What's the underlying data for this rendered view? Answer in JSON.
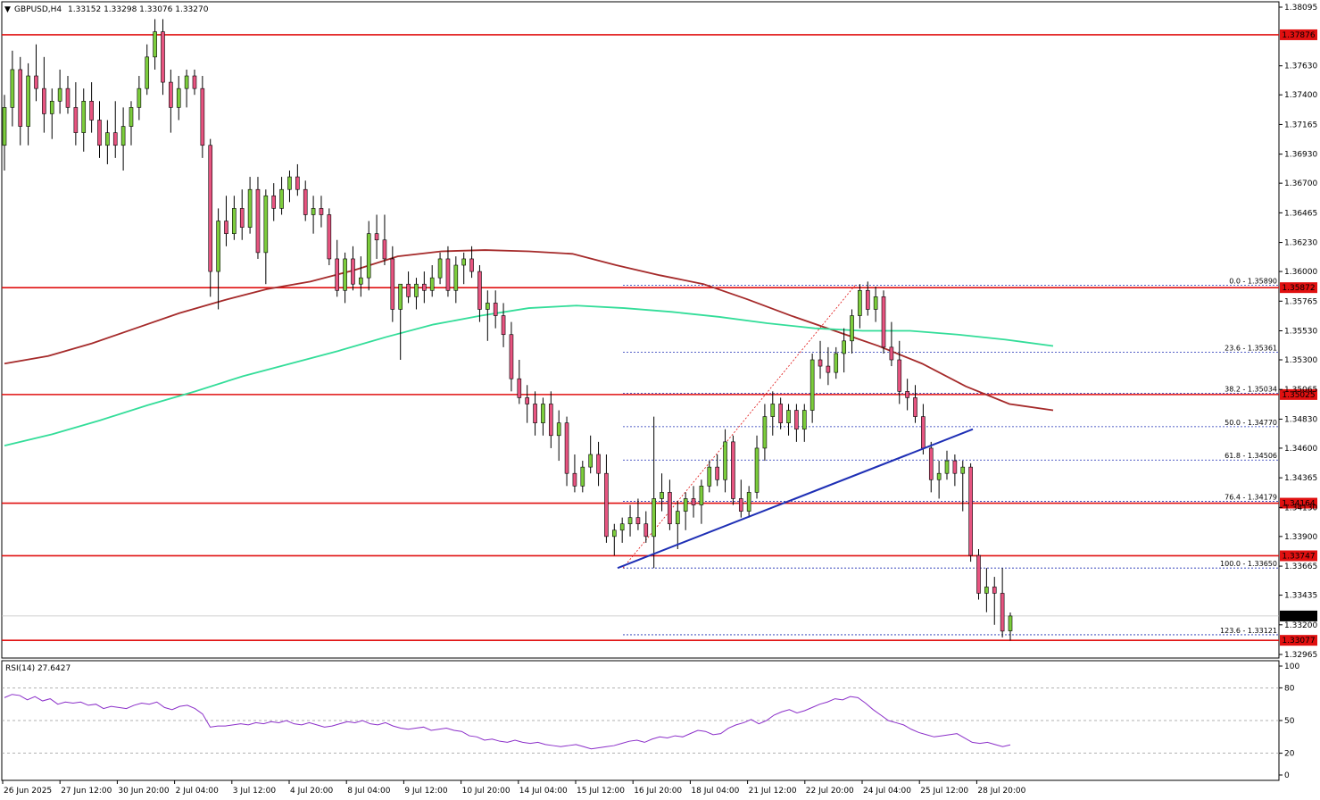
{
  "header": {
    "symbol_title": "GBPUSD,H4",
    "ohlc_text": "1.33152 1.33298 1.33076 1.33270",
    "title_marker": "▼"
  },
  "rsi_panel": {
    "title": "RSI(14) 27.6427",
    "levels": [
      100,
      80,
      50,
      20,
      0
    ],
    "dashed_levels": [
      80,
      50,
      20
    ]
  },
  "price_axis": {
    "ticks": [
      "1.38095",
      "1.37630",
      "1.37400",
      "1.37165",
      "1.36930",
      "1.36700",
      "1.36465",
      "1.36230",
      "1.36000",
      "1.35765",
      "1.35530",
      "1.35300",
      "1.35065",
      "1.34830",
      "1.34600",
      "1.34365",
      "1.34130",
      "1.33900",
      "1.33665",
      "1.33435",
      "1.33200",
      "1.32965"
    ],
    "current_price": "1.33270"
  },
  "time_axis": {
    "labels": [
      "26 Jun 2025",
      "27 Jun 12:00",
      "30 Jun 20:00",
      "2 Jul 04:00",
      "3 Jul 12:00",
      "4 Jul 20:00",
      "8 Jul 04:00",
      "9 Jul 12:00",
      "10 Jul 20:00",
      "14 Jul 04:00",
      "15 Jul 12:00",
      "16 Jul 20:00",
      "18 Jul 04:00",
      "21 Jul 12:00",
      "22 Jul 20:00",
      "24 Jul 04:00",
      "25 Jul 12:00",
      "28 Jul 20:00"
    ]
  },
  "levels": {
    "horizontal": [
      "1.37876",
      "1.35872",
      "1.35025",
      "1.34164",
      "1.33747",
      "1.33077"
    ],
    "colors": {
      "level_line": "#e01010",
      "bull": "#7ccd3c",
      "bear": "#e75480",
      "ma_slow": "#a52a2a",
      "ma_fast": "#33dd99",
      "trend": "#1e2fb5",
      "fib": "#1e2fb5",
      "current": "#000000"
    }
  },
  "fibonacci": [
    {
      "label": "0.0 - 1.35890"
    },
    {
      "label": "23.6 - 1.35361"
    },
    {
      "label": "38.2 - 1.35034"
    },
    {
      "label": "50.0 - 1.34770"
    },
    {
      "label": "61.8 - 1.34506"
    },
    {
      "label": "76.4 - 1.34179"
    },
    {
      "label": "100.0 - 1.33650"
    },
    {
      "label": "123.6 - 1.33121"
    }
  ],
  "chart_data": {
    "type": "candlestick",
    "symbol": "GBPUSD",
    "timeframe": "H4",
    "ylim": [
      1.32965,
      1.38095
    ],
    "rsi_ylim": [
      0,
      100
    ],
    "last_ohlc": {
      "open": 1.33152,
      "high": 1.33298,
      "low": 1.33076,
      "close": 1.3327
    },
    "rsi_last": 27.6427,
    "fib_levels": [
      {
        "ratio": 0.0,
        "price": 1.3589
      },
      {
        "ratio": 23.6,
        "price": 1.35361
      },
      {
        "ratio": 38.2,
        "price": 1.35034
      },
      {
        "ratio": 50.0,
        "price": 1.3477
      },
      {
        "ratio": 61.8,
        "price": 1.34506
      },
      {
        "ratio": 76.4,
        "price": 1.34179
      },
      {
        "ratio": 100.0,
        "price": 1.3365
      },
      {
        "ratio": 123.6,
        "price": 1.33121
      }
    ],
    "horizontal_levels": [
      1.37876,
      1.35872,
      1.35025,
      1.34164,
      1.33747,
      1.33077
    ],
    "trendline": [
      {
        "x": "15 Jul 12:00",
        "y": 1.3365
      },
      {
        "x": "25 Jul 12:00",
        "y": 1.3475
      }
    ],
    "candles": [
      [
        1.37,
        1.374,
        1.368,
        1.373
      ],
      [
        1.373,
        1.3775,
        1.3715,
        1.376
      ],
      [
        1.376,
        1.377,
        1.37,
        1.3715
      ],
      [
        1.3715,
        1.3765,
        1.37,
        1.3755
      ],
      [
        1.3755,
        1.378,
        1.3735,
        1.3745
      ],
      [
        1.3745,
        1.377,
        1.371,
        1.3725
      ],
      [
        1.3725,
        1.3745,
        1.3705,
        1.3735
      ],
      [
        1.3735,
        1.376,
        1.3725,
        1.3745
      ],
      [
        1.3745,
        1.3755,
        1.3725,
        1.373
      ],
      [
        1.373,
        1.375,
        1.37,
        1.371
      ],
      [
        1.371,
        1.3745,
        1.3695,
        1.3735
      ],
      [
        1.3735,
        1.375,
        1.371,
        1.372
      ],
      [
        1.372,
        1.3735,
        1.369,
        1.37
      ],
      [
        1.37,
        1.372,
        1.3685,
        1.371
      ],
      [
        1.371,
        1.3735,
        1.369,
        1.37
      ],
      [
        1.37,
        1.373,
        1.368,
        1.3715
      ],
      [
        1.3715,
        1.3735,
        1.37,
        1.373
      ],
      [
        1.373,
        1.3755,
        1.372,
        1.3745
      ],
      [
        1.3745,
        1.378,
        1.374,
        1.377
      ],
      [
        1.377,
        1.38,
        1.376,
        1.379
      ],
      [
        1.379,
        1.38,
        1.374,
        1.375
      ],
      [
        1.375,
        1.376,
        1.371,
        1.373
      ],
      [
        1.373,
        1.3755,
        1.372,
        1.3745
      ],
      [
        1.3745,
        1.376,
        1.373,
        1.3755
      ],
      [
        1.3755,
        1.376,
        1.374,
        1.3745
      ],
      [
        1.3745,
        1.3755,
        1.369,
        1.37
      ],
      [
        1.37,
        1.3705,
        1.358,
        1.36
      ],
      [
        1.36,
        1.365,
        1.357,
        1.364
      ],
      [
        1.364,
        1.366,
        1.362,
        1.363
      ],
      [
        1.363,
        1.366,
        1.3625,
        1.365
      ],
      [
        1.365,
        1.3665,
        1.3625,
        1.3635
      ],
      [
        1.3635,
        1.3675,
        1.363,
        1.3665
      ],
      [
        1.3665,
        1.3675,
        1.361,
        1.3615
      ],
      [
        1.3615,
        1.3665,
        1.359,
        1.366
      ],
      [
        1.366,
        1.367,
        1.364,
        1.365
      ],
      [
        1.365,
        1.3675,
        1.3645,
        1.3665
      ],
      [
        1.3665,
        1.368,
        1.3655,
        1.3675
      ],
      [
        1.3675,
        1.3685,
        1.366,
        1.3665
      ],
      [
        1.3665,
        1.3672,
        1.364,
        1.3645
      ],
      [
        1.3645,
        1.366,
        1.363,
        1.365
      ],
      [
        1.365,
        1.366,
        1.3635,
        1.3645
      ],
      [
        1.3645,
        1.365,
        1.3605,
        1.361
      ],
      [
        1.361,
        1.3625,
        1.358,
        1.3585
      ],
      [
        1.3585,
        1.3615,
        1.3575,
        1.361
      ],
      [
        1.361,
        1.362,
        1.3585,
        1.359
      ],
      [
        1.359,
        1.3612,
        1.358,
        1.3595
      ],
      [
        1.3595,
        1.364,
        1.3585,
        1.363
      ],
      [
        1.363,
        1.3645,
        1.361,
        1.3625
      ],
      [
        1.3625,
        1.3645,
        1.3605,
        1.361
      ],
      [
        1.361,
        1.362,
        1.356,
        1.357
      ],
      [
        1.357,
        1.3585,
        1.353,
        1.359
      ],
      [
        1.359,
        1.36,
        1.3575,
        1.358
      ],
      [
        1.358,
        1.3595,
        1.357,
        1.359
      ],
      [
        1.359,
        1.36,
        1.3575,
        1.3585
      ],
      [
        1.3585,
        1.3605,
        1.358,
        1.3595
      ],
      [
        1.3595,
        1.3615,
        1.359,
        1.361
      ],
      [
        1.361,
        1.362,
        1.358,
        1.3585
      ],
      [
        1.3585,
        1.3612,
        1.3575,
        1.3605
      ],
      [
        1.3605,
        1.3615,
        1.359,
        1.361
      ],
      [
        1.361,
        1.362,
        1.3595,
        1.36
      ],
      [
        1.36,
        1.3605,
        1.356,
        1.357
      ],
      [
        1.357,
        1.3585,
        1.3545,
        1.3575
      ],
      [
        1.3575,
        1.3585,
        1.3555,
        1.3565
      ],
      [
        1.3565,
        1.3575,
        1.354,
        1.355
      ],
      [
        1.355,
        1.356,
        1.3505,
        1.3515
      ],
      [
        1.3515,
        1.353,
        1.3495,
        1.35
      ],
      [
        1.35,
        1.351,
        1.348,
        1.3495
      ],
      [
        1.3495,
        1.3505,
        1.347,
        1.348
      ],
      [
        1.348,
        1.35,
        1.347,
        1.3495
      ],
      [
        1.3495,
        1.3505,
        1.346,
        1.347
      ],
      [
        1.347,
        1.349,
        1.345,
        1.348
      ],
      [
        1.348,
        1.3485,
        1.343,
        1.344
      ],
      [
        1.344,
        1.3455,
        1.3425,
        1.343
      ],
      [
        1.343,
        1.345,
        1.3425,
        1.3445
      ],
      [
        1.3445,
        1.347,
        1.344,
        1.3455
      ],
      [
        1.3455,
        1.3465,
        1.343,
        1.344
      ],
      [
        1.344,
        1.3455,
        1.3385,
        1.339
      ],
      [
        1.339,
        1.34,
        1.3375,
        1.3395
      ],
      [
        1.3395,
        1.3405,
        1.3385,
        1.34
      ],
      [
        1.34,
        1.3415,
        1.339,
        1.3405
      ],
      [
        1.3405,
        1.342,
        1.3395,
        1.34
      ],
      [
        1.34,
        1.341,
        1.3385,
        1.339
      ],
      [
        1.339,
        1.3485,
        1.3365,
        1.342
      ],
      [
        1.342,
        1.344,
        1.341,
        1.3425
      ],
      [
        1.3425,
        1.3435,
        1.3395,
        1.34
      ],
      [
        1.34,
        1.3418,
        1.338,
        1.341
      ],
      [
        1.341,
        1.3425,
        1.3395,
        1.342
      ],
      [
        1.342,
        1.343,
        1.3405,
        1.3415
      ],
      [
        1.3415,
        1.3435,
        1.34,
        1.343
      ],
      [
        1.343,
        1.345,
        1.3425,
        1.3445
      ],
      [
        1.3445,
        1.3455,
        1.343,
        1.3435
      ],
      [
        1.3435,
        1.3475,
        1.3425,
        1.3465
      ],
      [
        1.3465,
        1.347,
        1.3415,
        1.342
      ],
      [
        1.342,
        1.3435,
        1.3405,
        1.341
      ],
      [
        1.341,
        1.343,
        1.3405,
        1.3425
      ],
      [
        1.3425,
        1.347,
        1.342,
        1.346
      ],
      [
        1.346,
        1.3495,
        1.345,
        1.3485
      ],
      [
        1.3485,
        1.3505,
        1.347,
        1.3495
      ],
      [
        1.3495,
        1.35,
        1.3475,
        1.348
      ],
      [
        1.348,
        1.3495,
        1.347,
        1.349
      ],
      [
        1.349,
        1.3495,
        1.3465,
        1.3475
      ],
      [
        1.3475,
        1.3495,
        1.3465,
        1.349
      ],
      [
        1.349,
        1.3535,
        1.348,
        1.353
      ],
      [
        1.353,
        1.3545,
        1.3515,
        1.3525
      ],
      [
        1.3525,
        1.354,
        1.351,
        1.352
      ],
      [
        1.352,
        1.354,
        1.3515,
        1.3535
      ],
      [
        1.3535,
        1.3555,
        1.352,
        1.3545
      ],
      [
        1.3545,
        1.357,
        1.3535,
        1.3565
      ],
      [
        1.3565,
        1.359,
        1.3555,
        1.3585
      ],
      [
        1.3585,
        1.3592,
        1.3565,
        1.357
      ],
      [
        1.357,
        1.3588,
        1.356,
        1.358
      ],
      [
        1.358,
        1.3585,
        1.3535,
        1.354
      ],
      [
        1.354,
        1.356,
        1.3525,
        1.353
      ],
      [
        1.353,
        1.3545,
        1.3495,
        1.3505
      ],
      [
        1.3505,
        1.3515,
        1.349,
        1.35
      ],
      [
        1.35,
        1.351,
        1.348,
        1.3485
      ],
      [
        1.3485,
        1.3495,
        1.3455,
        1.346
      ],
      [
        1.346,
        1.3465,
        1.3425,
        1.3435
      ],
      [
        1.3435,
        1.345,
        1.342,
        1.344
      ],
      [
        1.344,
        1.3458,
        1.3435,
        1.345
      ],
      [
        1.345,
        1.3455,
        1.343,
        1.344
      ],
      [
        1.344,
        1.345,
        1.341,
        1.3445
      ],
      [
        1.3445,
        1.3448,
        1.337,
        1.3375
      ],
      [
        1.3375,
        1.338,
        1.334,
        1.3345
      ],
      [
        1.3345,
        1.3365,
        1.333,
        1.335
      ],
      [
        1.335,
        1.3358,
        1.332,
        1.3345
      ],
      [
        1.3345,
        1.3365,
        1.331,
        1.3315
      ],
      [
        1.33152,
        1.33298,
        1.33076,
        1.3327
      ]
    ],
    "ma_slow": [
      1.3527,
      1.3533,
      1.3543,
      1.3555,
      1.3567,
      1.3577,
      1.3586,
      1.3592,
      1.3601,
      1.3612,
      1.3616,
      1.3617,
      1.3616,
      1.3614,
      1.3605,
      1.3597,
      1.359,
      1.3578,
      1.3565,
      1.3553,
      1.3541,
      1.3527,
      1.3509,
      1.3495,
      1.349
    ],
    "ma_fast": [
      1.3462,
      1.3471,
      1.3482,
      1.3494,
      1.3505,
      1.3517,
      1.3527,
      1.3537,
      1.3548,
      1.3558,
      1.3565,
      1.3571,
      1.3573,
      1.3571,
      1.3568,
      1.3564,
      1.3559,
      1.3555,
      1.3553,
      1.3553,
      1.355,
      1.3546,
      1.3541
    ],
    "rsi": [
      71,
      74,
      73,
      69,
      72,
      68,
      70,
      65,
      67,
      66,
      67,
      64,
      65,
      61,
      63,
      62,
      61,
      64,
      66,
      65,
      67,
      62,
      60,
      63,
      64,
      61,
      56,
      44,
      45,
      45,
      46,
      47,
      46,
      48,
      47,
      49,
      48,
      50,
      47,
      46,
      48,
      46,
      44,
      45,
      47,
      49,
      48,
      50,
      47,
      46,
      48,
      45,
      43,
      42,
      43,
      44,
      41,
      42,
      43,
      41,
      40,
      36,
      35,
      32,
      33,
      31,
      30,
      32,
      30,
      29,
      30,
      28,
      27,
      26,
      27,
      28,
      26,
      24,
      25,
      26,
      27,
      29,
      31,
      32,
      30,
      33,
      35,
      34,
      36,
      35,
      38,
      41,
      40,
      37,
      38,
      43,
      46,
      48,
      51,
      47,
      50,
      55,
      58,
      60,
      57,
      59,
      62,
      65,
      67,
      70,
      69,
      72,
      71,
      66,
      60,
      55,
      50,
      48,
      46,
      42,
      39,
      37,
      35,
      36,
      37,
      38,
      34,
      30,
      29,
      30,
      28,
      26,
      27.6427
    ]
  }
}
